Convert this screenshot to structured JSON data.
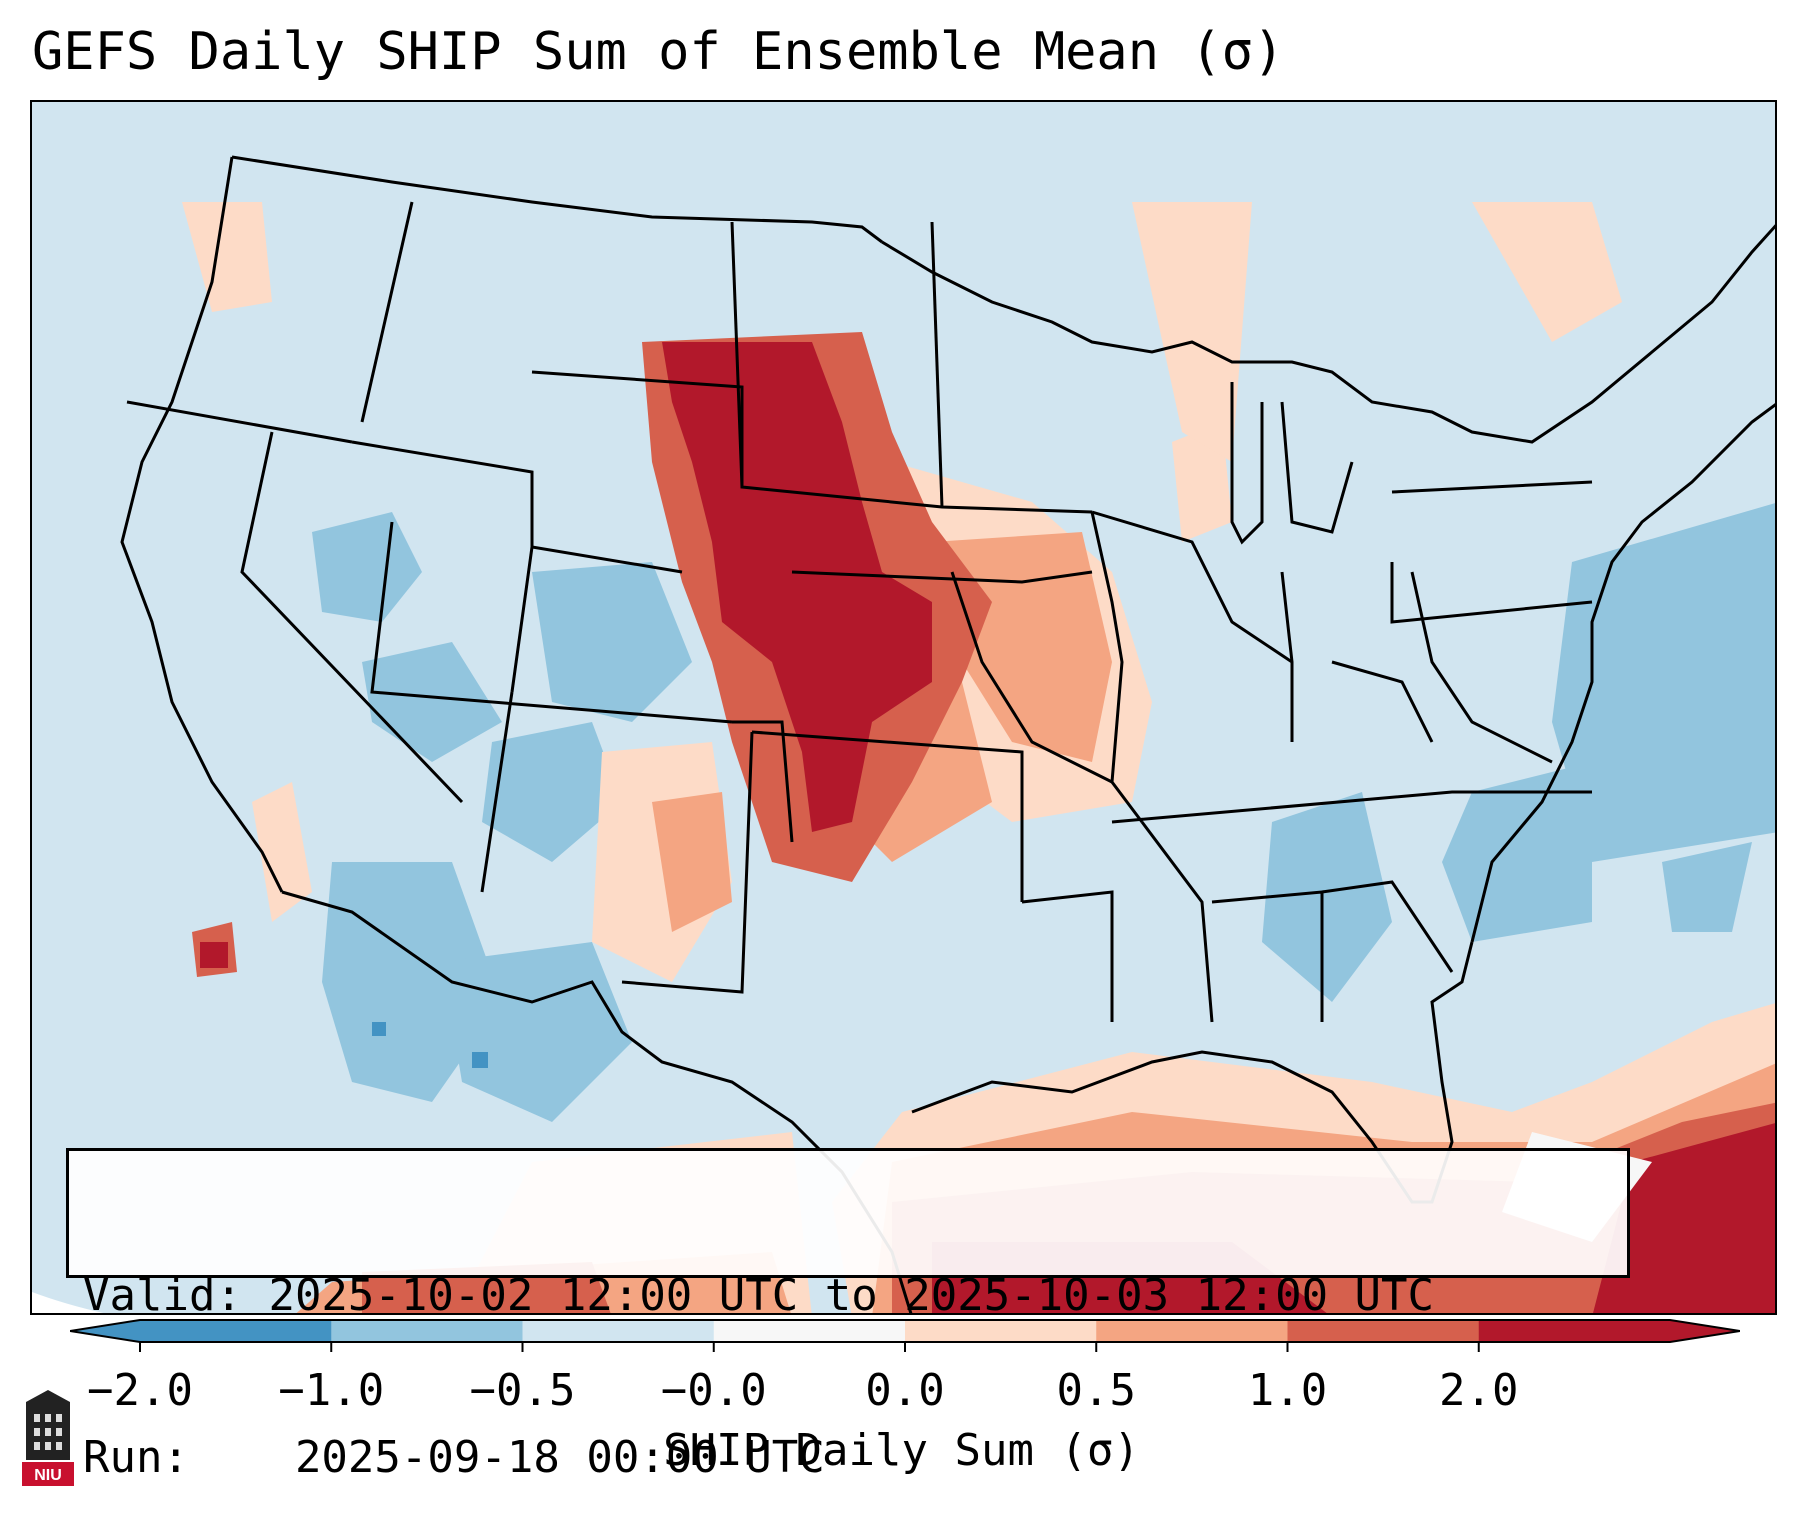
{
  "title": "GEFS Daily SHIP Sum of Ensemble Mean (σ)",
  "info": {
    "valid_label": "Valid:",
    "valid_value": "2025-10-02 12:00 UTC to 2025-10-03 12:00 UTC",
    "run_label": "Run:",
    "run_value": "2025-09-18 00:00 UTC"
  },
  "colorbar": {
    "label": "SHIP Daily Sum (σ)",
    "ticks": [
      "−2.0",
      "−1.0",
      "−0.5",
      "−0.0",
      "0.0",
      "0.5",
      "1.0",
      "2.0"
    ],
    "colors": [
      "#4393c3",
      "#92c5de",
      "#d1e5f0",
      "#f7f7f7",
      "#fddbc7",
      "#f4a582",
      "#d6604d",
      "#b2182b"
    ],
    "extend": "both"
  },
  "map": {
    "region": "Continental United States",
    "projection": "Lambert Conformal",
    "background_color": "#d1e5f0"
  },
  "logo": {
    "text": "NIU"
  }
}
